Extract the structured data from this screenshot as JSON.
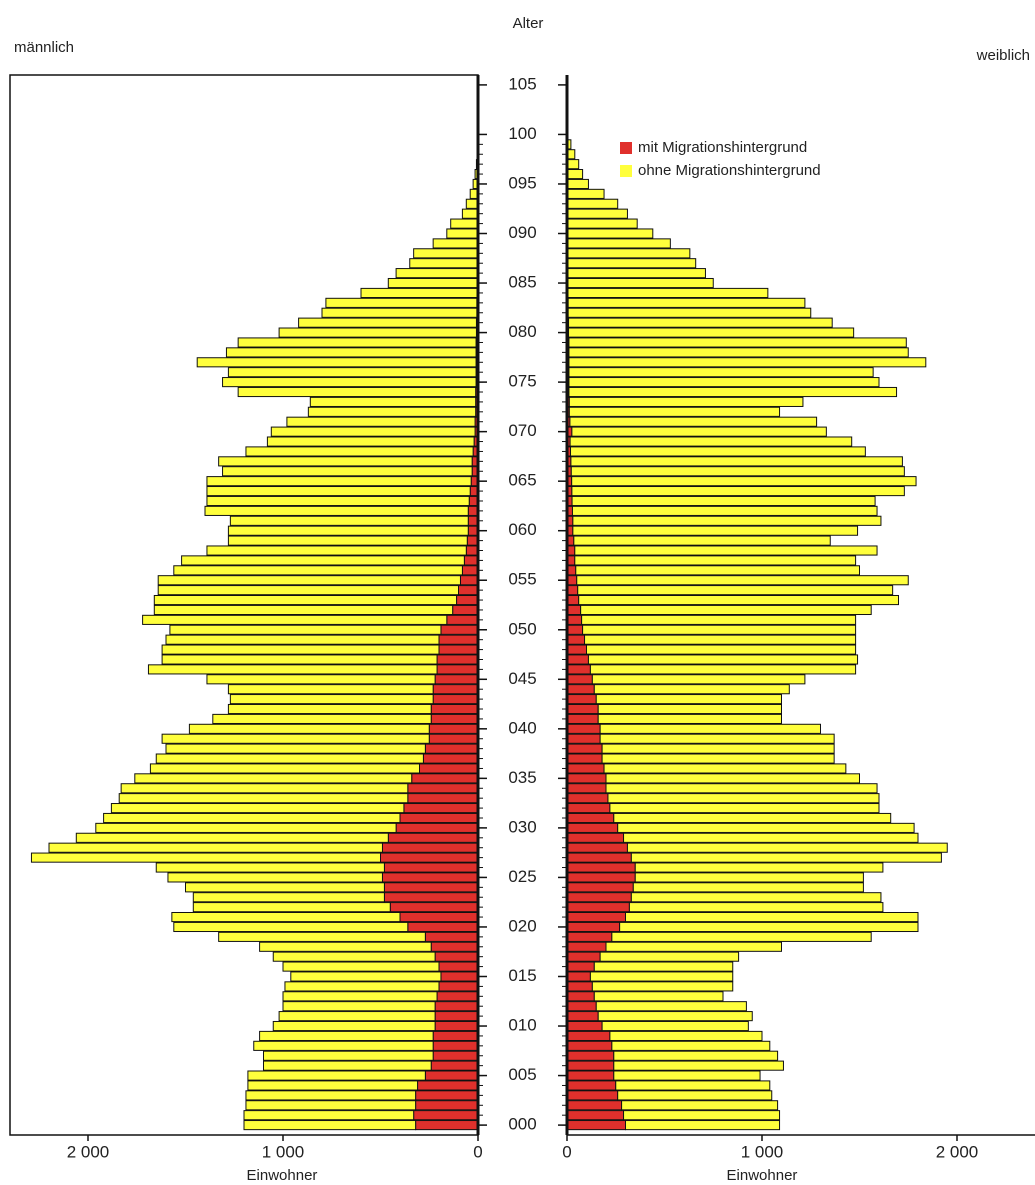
{
  "chart_data": {
    "type": "population-pyramid",
    "title": "Alter",
    "left_label": "männlich",
    "right_label": "weiblich",
    "x_label": "Einwohner",
    "ages": [
      0,
      1,
      2,
      3,
      4,
      5,
      6,
      7,
      8,
      9,
      10,
      11,
      12,
      13,
      14,
      15,
      16,
      17,
      18,
      19,
      20,
      21,
      22,
      23,
      24,
      25,
      26,
      27,
      28,
      29,
      30,
      31,
      32,
      33,
      34,
      35,
      36,
      37,
      38,
      39,
      40,
      41,
      42,
      43,
      44,
      45,
      46,
      47,
      48,
      49,
      50,
      51,
      52,
      53,
      54,
      55,
      56,
      57,
      58,
      59,
      60,
      61,
      62,
      63,
      64,
      65,
      66,
      67,
      68,
      69,
      70,
      71,
      72,
      73,
      74,
      75,
      76,
      77,
      78,
      79,
      80,
      81,
      82,
      83,
      84,
      85,
      86,
      87,
      88,
      89,
      90,
      91,
      92,
      93,
      94,
      95,
      96,
      97,
      98,
      99
    ],
    "xlim": [
      0,
      2400
    ],
    "xticks": [
      {
        "value": 2000,
        "label": "2 000"
      },
      {
        "value": 1000,
        "label": "1 000"
      },
      0
    ],
    "ylim": [
      -1,
      106
    ],
    "yticks": [
      {
        "value": 0,
        "label": "000"
      },
      {
        "value": 5,
        "label": "005"
      },
      {
        "value": 10,
        "label": "010"
      },
      {
        "value": 15,
        "label": "015"
      },
      {
        "value": 20,
        "label": "020"
      },
      {
        "value": 25,
        "label": "025"
      },
      {
        "value": 30,
        "label": "030"
      },
      {
        "value": 35,
        "label": "035"
      },
      {
        "value": 40,
        "label": "040"
      },
      {
        "value": 45,
        "label": "045"
      },
      {
        "value": 50,
        "label": "050"
      },
      {
        "value": 55,
        "label": "055"
      },
      {
        "value": 60,
        "label": "060"
      },
      {
        "value": 65,
        "label": "065"
      },
      {
        "value": 70,
        "label": "070"
      },
      {
        "value": 75,
        "label": "075"
      },
      {
        "value": 80,
        "label": "080"
      },
      {
        "value": 85,
        "label": "085"
      },
      {
        "value": 90,
        "label": "090"
      },
      {
        "value": 95,
        "label": "095"
      },
      {
        "value": 100,
        "label": "100"
      },
      {
        "value": 105,
        "label": "105"
      }
    ],
    "series": [
      {
        "name": "mit Migrationshintergrund",
        "color": "#e0302c",
        "male": [
          320,
          330,
          320,
          320,
          310,
          270,
          240,
          230,
          230,
          230,
          220,
          220,
          220,
          210,
          200,
          190,
          200,
          220,
          240,
          270,
          360,
          400,
          450,
          480,
          480,
          490,
          480,
          500,
          490,
          460,
          420,
          400,
          380,
          360,
          360,
          340,
          300,
          280,
          270,
          250,
          250,
          240,
          240,
          230,
          230,
          220,
          210,
          210,
          200,
          200,
          190,
          160,
          130,
          110,
          100,
          90,
          80,
          70,
          60,
          55,
          50,
          50,
          50,
          45,
          40,
          35,
          30,
          30,
          25,
          20,
          15,
          15,
          12,
          12,
          12,
          10,
          10,
          10,
          10,
          10,
          8,
          8,
          6,
          6,
          5,
          4,
          4,
          3,
          3,
          2,
          0,
          0,
          0,
          0,
          0,
          0,
          0,
          0,
          0,
          0
        ],
        "female": [
          300,
          290,
          280,
          260,
          250,
          240,
          240,
          240,
          230,
          220,
          180,
          160,
          150,
          140,
          130,
          120,
          140,
          170,
          200,
          230,
          270,
          300,
          320,
          330,
          340,
          350,
          350,
          330,
          310,
          290,
          260,
          240,
          220,
          210,
          200,
          200,
          190,
          180,
          180,
          170,
          170,
          160,
          160,
          150,
          140,
          130,
          120,
          110,
          100,
          90,
          80,
          75,
          70,
          60,
          55,
          50,
          45,
          40,
          40,
          35,
          30,
          30,
          28,
          26,
          25,
          24,
          22,
          20,
          18,
          16,
          25,
          15,
          12,
          12,
          10,
          10,
          10,
          10,
          10,
          10,
          8,
          8,
          6,
          6,
          5,
          4,
          4,
          3,
          3,
          2,
          0,
          0,
          0,
          0,
          0,
          0,
          0,
          0,
          0,
          0
        ]
      },
      {
        "name": "ohne Migrationshintergrund",
        "color": "#ffff3c",
        "male": [
          880,
          870,
          870,
          870,
          870,
          910,
          860,
          870,
          920,
          890,
          830,
          800,
          780,
          790,
          790,
          770,
          800,
          830,
          880,
          1060,
          1200,
          1170,
          1010,
          980,
          1020,
          1100,
          1170,
          1790,
          1710,
          1600,
          1540,
          1520,
          1500,
          1480,
          1470,
          1420,
          1380,
          1370,
          1330,
          1370,
          1230,
          1120,
          1040,
          1040,
          1050,
          1170,
          1480,
          1410,
          1420,
          1400,
          1390,
          1560,
          1530,
          1550,
          1540,
          1550,
          1480,
          1450,
          1330,
          1225,
          1230,
          1220,
          1350,
          1345,
          1350,
          1355,
          1280,
          1300,
          1165,
          1060,
          1045,
          965,
          858,
          848,
          1218,
          1300,
          1270,
          1430,
          1280,
          1220,
          1012,
          912,
          794,
          774,
          595,
          456,
          416,
          347,
          327,
          228,
          160,
          140,
          80,
          60,
          40,
          25,
          15,
          8,
          4,
          2
        ],
        "female": [
          790,
          800,
          800,
          790,
          790,
          750,
          870,
          840,
          810,
          780,
          750,
          790,
          770,
          660,
          720,
          730,
          710,
          710,
          900,
          1330,
          1530,
          1500,
          1300,
          1280,
          1180,
          1170,
          1270,
          1590,
          1640,
          1510,
          1520,
          1420,
          1380,
          1390,
          1390,
          1300,
          1240,
          1190,
          1190,
          1200,
          1130,
          940,
          940,
          950,
          1000,
          1090,
          1360,
          1380,
          1380,
          1390,
          1400,
          1405,
          1490,
          1640,
          1615,
          1700,
          1455,
          1440,
          1550,
          1315,
          1460,
          1580,
          1562,
          1554,
          1705,
          1766,
          1708,
          1700,
          1512,
          1444,
          1305,
          1265,
          1078,
          1198,
          1680,
          1590,
          1560,
          1830,
          1740,
          1730,
          1462,
          1352,
          1244,
          1214,
          1025,
          746,
          706,
          657,
          627,
          528,
          440,
          360,
          310,
          260,
          190,
          110,
          80,
          60,
          40,
          20
        ]
      }
    ]
  }
}
